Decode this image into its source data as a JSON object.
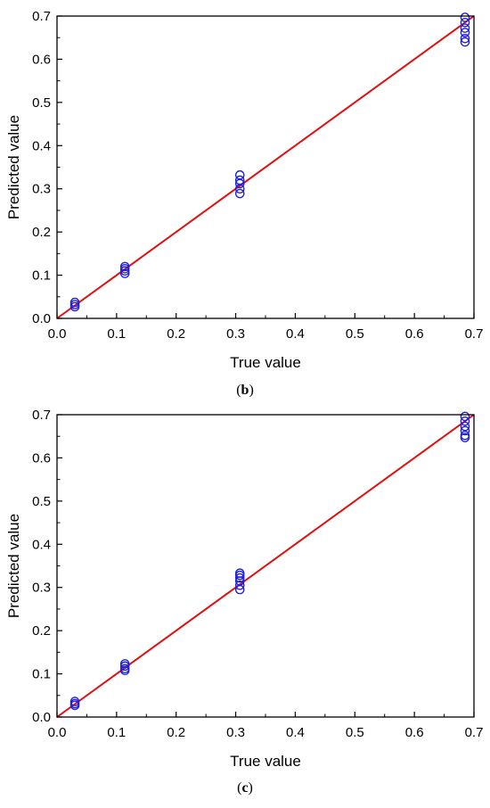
{
  "chart_data": [
    {
      "type": "scatter",
      "caption_letter": "b",
      "xlabel": "True value",
      "ylabel": "Predicted value",
      "xlim": [
        0.0,
        0.7
      ],
      "ylim": [
        0.0,
        0.7
      ],
      "x_ticks": [
        "0.0",
        "0.1",
        "0.2",
        "0.3",
        "0.4",
        "0.5",
        "0.6",
        "0.7"
      ],
      "y_ticks": [
        "0.0",
        "0.1",
        "0.2",
        "0.3",
        "0.4",
        "0.5",
        "0.6",
        "0.7"
      ],
      "grid": false,
      "marker": "open-circle",
      "marker_color": "#1f1fe0",
      "line_color": "#e01010",
      "reference_line": {
        "from": [
          0.0,
          0.0
        ],
        "to": [
          0.7,
          0.7
        ]
      },
      "points": [
        {
          "x": 0.03,
          "y": 0.027
        },
        {
          "x": 0.03,
          "y": 0.032
        },
        {
          "x": 0.03,
          "y": 0.037
        },
        {
          "x": 0.114,
          "y": 0.104
        },
        {
          "x": 0.114,
          "y": 0.11
        },
        {
          "x": 0.114,
          "y": 0.115
        },
        {
          "x": 0.114,
          "y": 0.12
        },
        {
          "x": 0.307,
          "y": 0.289
        },
        {
          "x": 0.307,
          "y": 0.3
        },
        {
          "x": 0.307,
          "y": 0.312
        },
        {
          "x": 0.307,
          "y": 0.32
        },
        {
          "x": 0.307,
          "y": 0.332
        },
        {
          "x": 0.685,
          "y": 0.64
        },
        {
          "x": 0.685,
          "y": 0.648
        },
        {
          "x": 0.685,
          "y": 0.662
        },
        {
          "x": 0.685,
          "y": 0.672
        },
        {
          "x": 0.685,
          "y": 0.685
        },
        {
          "x": 0.685,
          "y": 0.697
        }
      ]
    },
    {
      "type": "scatter",
      "caption_letter": "c",
      "xlabel": "True value",
      "ylabel": "Predicted value",
      "xlim": [
        0.0,
        0.7
      ],
      "ylim": [
        0.0,
        0.7
      ],
      "x_ticks": [
        "0.0",
        "0.1",
        "0.2",
        "0.3",
        "0.4",
        "0.5",
        "0.6",
        "0.7"
      ],
      "y_ticks": [
        "0.0",
        "0.1",
        "0.2",
        "0.3",
        "0.4",
        "0.5",
        "0.6",
        "0.7"
      ],
      "grid": false,
      "marker": "open-circle",
      "marker_color": "#1f1fe0",
      "line_color": "#e01010",
      "reference_line": {
        "from": [
          0.0,
          0.0
        ],
        "to": [
          0.7,
          0.7
        ]
      },
      "points": [
        {
          "x": 0.03,
          "y": 0.027
        },
        {
          "x": 0.03,
          "y": 0.031
        },
        {
          "x": 0.03,
          "y": 0.036
        },
        {
          "x": 0.114,
          "y": 0.108
        },
        {
          "x": 0.114,
          "y": 0.112
        },
        {
          "x": 0.114,
          "y": 0.118
        },
        {
          "x": 0.114,
          "y": 0.123
        },
        {
          "x": 0.307,
          "y": 0.295
        },
        {
          "x": 0.307,
          "y": 0.305
        },
        {
          "x": 0.307,
          "y": 0.315
        },
        {
          "x": 0.307,
          "y": 0.322
        },
        {
          "x": 0.307,
          "y": 0.328
        },
        {
          "x": 0.307,
          "y": 0.333
        },
        {
          "x": 0.685,
          "y": 0.647
        },
        {
          "x": 0.685,
          "y": 0.652
        },
        {
          "x": 0.685,
          "y": 0.663
        },
        {
          "x": 0.685,
          "y": 0.673
        },
        {
          "x": 0.685,
          "y": 0.685
        },
        {
          "x": 0.685,
          "y": 0.696
        }
      ]
    }
  ]
}
